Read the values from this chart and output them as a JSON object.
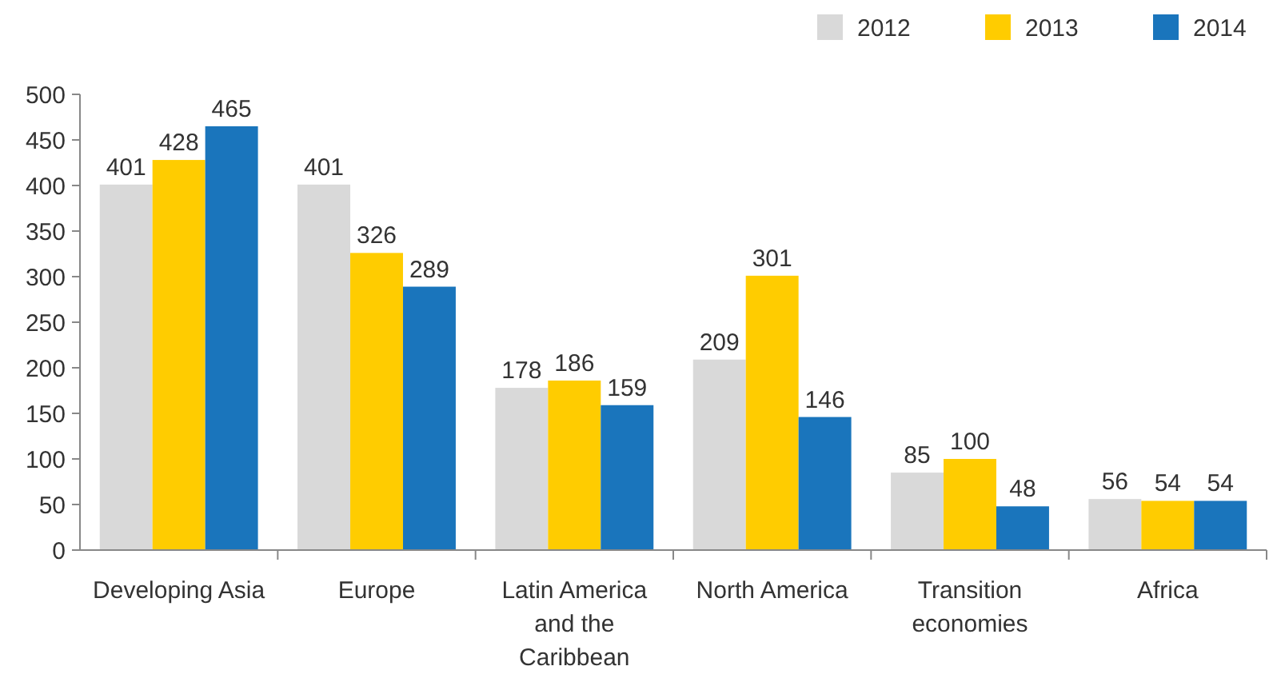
{
  "chart_data": {
    "type": "bar",
    "categories": [
      "Developing Asia",
      "Europe",
      "Latin America and the Caribbean",
      "North America",
      "Transition economies",
      "Africa"
    ],
    "series": [
      {
        "name": "2012",
        "color": "#d9d9d9",
        "values": [
          401,
          401,
          178,
          209,
          85,
          56
        ]
      },
      {
        "name": "2013",
        "color": "#ffcc00",
        "values": [
          428,
          326,
          186,
          301,
          100,
          54
        ]
      },
      {
        "name": "2014",
        "color": "#1a75bc",
        "values": [
          465,
          289,
          159,
          146,
          48,
          54
        ]
      }
    ],
    "ylim": [
      0,
      500
    ],
    "yticks": [
      0,
      50,
      100,
      150,
      200,
      250,
      300,
      350,
      400,
      450,
      500
    ],
    "grid": false,
    "legend": "top right",
    "data_labels": true
  }
}
